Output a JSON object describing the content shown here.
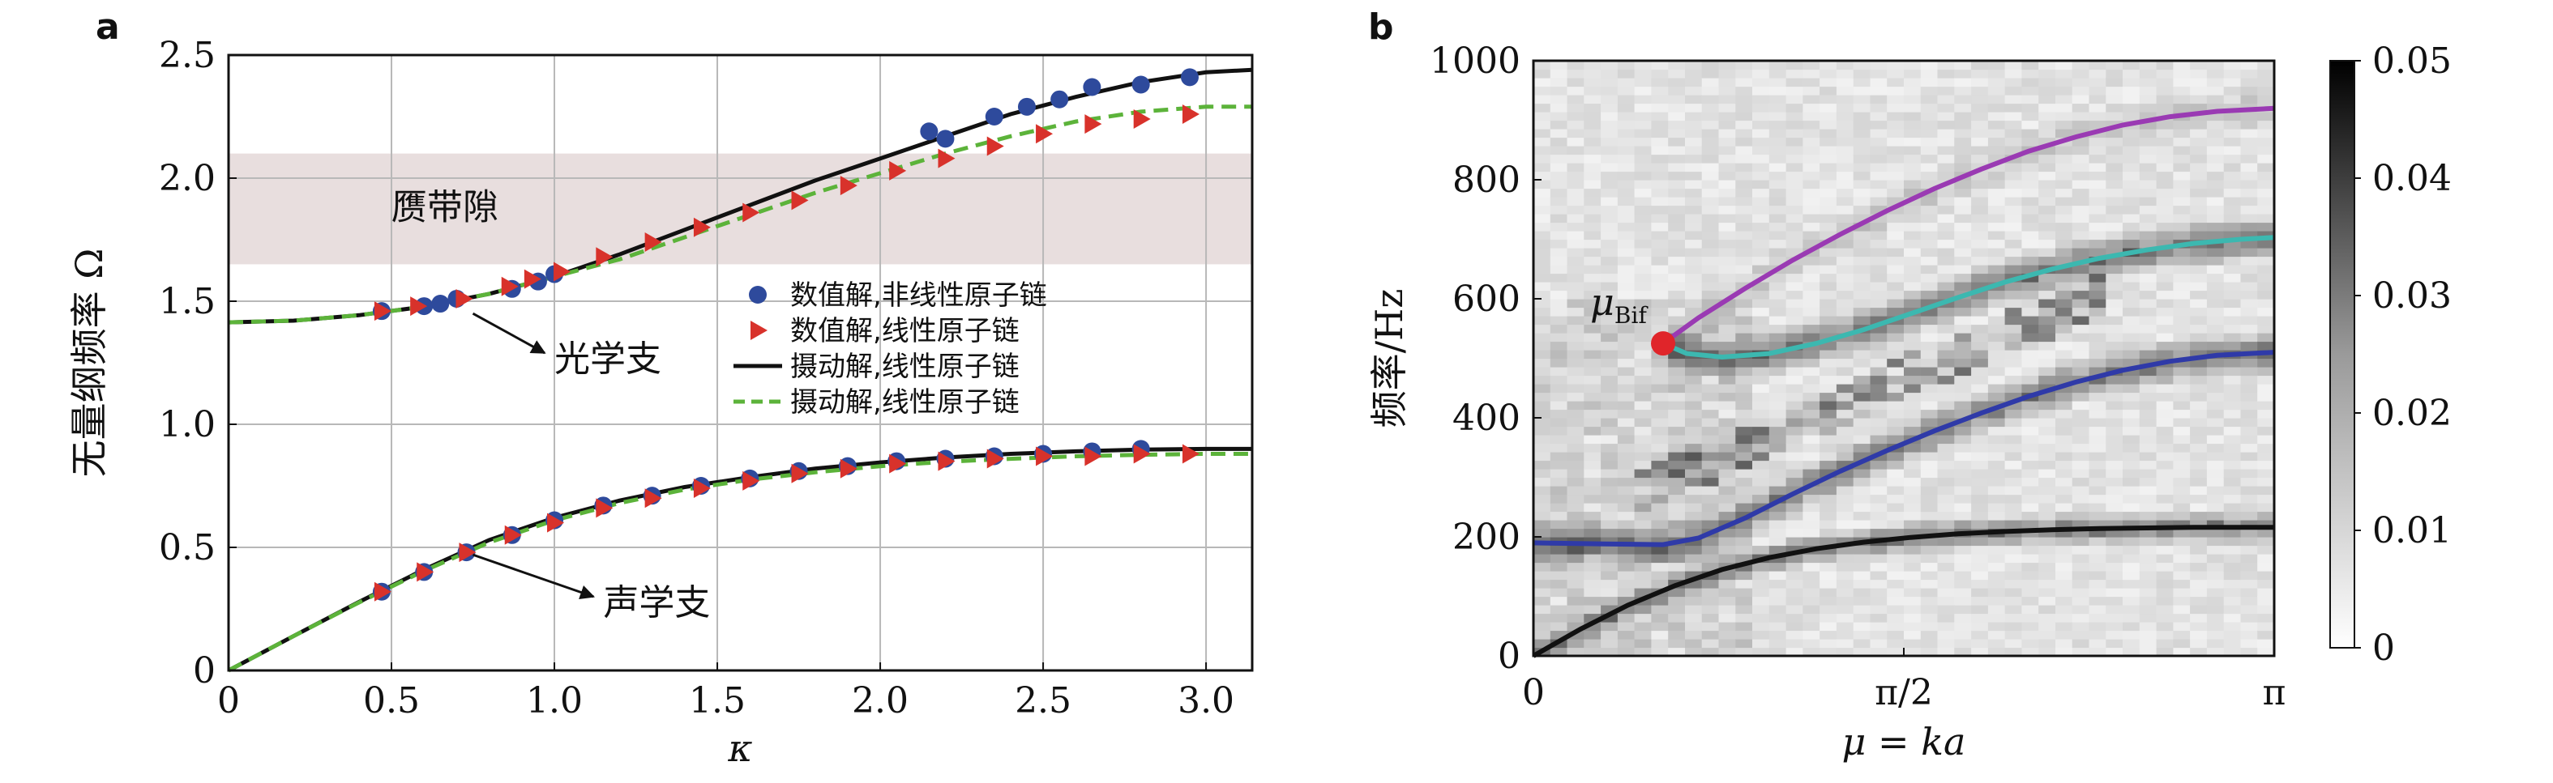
{
  "panels": {
    "a": "a",
    "b": "b"
  },
  "chart_data": [
    {
      "type": "line",
      "xlabel": "κ",
      "ylabel": "无量纲频率 Ω",
      "xlim": [
        0,
        3.14159
      ],
      "ylim": [
        0,
        2.5
      ],
      "xticks": [
        0,
        0.5,
        1.0,
        1.5,
        2.0,
        2.5,
        3.0
      ],
      "xtick_labels": [
        "0",
        "0.5",
        "1.0",
        "1.5",
        "2.0",
        "2.5",
        "3.0"
      ],
      "yticks": [
        0,
        0.5,
        1.0,
        1.5,
        2.0,
        2.5
      ],
      "ytick_labels": [
        "0",
        "0.5",
        "1.0",
        "1.5",
        "2.0",
        "2.5"
      ],
      "grid": true,
      "band_gap": {
        "label": "赝带隙",
        "y_range": [
          1.65,
          2.1
        ],
        "color": "#e8dede"
      },
      "annotations": [
        {
          "text": "光学支",
          "point": [
            0.75,
            1.45
          ],
          "text_at": [
            1.0,
            1.27
          ]
        },
        {
          "text": "声学支",
          "point": [
            0.75,
            0.47
          ],
          "text_at": [
            1.15,
            0.28
          ]
        }
      ],
      "legend_position": "right",
      "series": [
        {
          "name": "数值解,非线性原子链",
          "kind": "scatter",
          "marker": "circle",
          "color": "#2e4a9c",
          "x": [
            0.47,
            0.6,
            0.65,
            0.7,
            0.87,
            0.95,
            1.0
          ],
          "y": [
            1.46,
            1.48,
            1.49,
            1.51,
            1.55,
            1.58,
            1.61
          ]
        },
        {
          "name": "数值解,非线性原子链",
          "kind": "scatter",
          "marker": "circle",
          "color": "#2e4a9c",
          "x": [
            2.15,
            2.2,
            2.35,
            2.45,
            2.55,
            2.65,
            2.8,
            2.95
          ],
          "y": [
            2.19,
            2.16,
            2.25,
            2.29,
            2.32,
            2.37,
            2.38,
            2.41
          ]
        },
        {
          "name": "数值解,非线性原子链",
          "kind": "scatter",
          "marker": "circle",
          "color": "#2e4a9c",
          "x": [
            0.47,
            0.6,
            0.73,
            0.87,
            1.0,
            1.15,
            1.3,
            1.45,
            1.6,
            1.75,
            1.9,
            2.05,
            2.2,
            2.35,
            2.5,
            2.65,
            2.8
          ],
          "y": [
            0.32,
            0.4,
            0.48,
            0.55,
            0.61,
            0.67,
            0.71,
            0.75,
            0.78,
            0.81,
            0.83,
            0.85,
            0.86,
            0.87,
            0.88,
            0.89,
            0.9
          ]
        },
        {
          "name": "数值解,线性原子链",
          "kind": "scatter",
          "marker": "triangle",
          "color": "#d8322b",
          "x": [
            0.47,
            0.58,
            0.72,
            0.86,
            0.93,
            1.02,
            1.15,
            1.3,
            1.45,
            1.6,
            1.75,
            1.9,
            2.05,
            2.2,
            2.35,
            2.5,
            2.65,
            2.8,
            2.95
          ],
          "y": [
            1.46,
            1.48,
            1.51,
            1.56,
            1.59,
            1.62,
            1.68,
            1.74,
            1.8,
            1.86,
            1.91,
            1.97,
            2.03,
            2.08,
            2.13,
            2.18,
            2.22,
            2.24,
            2.26
          ]
        },
        {
          "name": "数值解,线性原子链",
          "kind": "scatter",
          "marker": "triangle",
          "color": "#d8322b",
          "x": [
            0.47,
            0.6,
            0.73,
            0.87,
            1.0,
            1.15,
            1.3,
            1.45,
            1.6,
            1.75,
            1.9,
            2.05,
            2.2,
            2.35,
            2.5,
            2.65,
            2.8,
            2.95
          ],
          "y": [
            0.32,
            0.4,
            0.48,
            0.55,
            0.6,
            0.66,
            0.7,
            0.74,
            0.77,
            0.8,
            0.82,
            0.84,
            0.85,
            0.86,
            0.87,
            0.87,
            0.88,
            0.88
          ]
        },
        {
          "name": "摄动解,线性原子链",
          "kind": "line",
          "style": "solid",
          "color": "#111111",
          "x": [
            0,
            0.2,
            0.4,
            0.6,
            0.8,
            1.0,
            1.2,
            1.4,
            1.6,
            1.8,
            2.0,
            2.2,
            2.4,
            2.6,
            2.8,
            3.0,
            3.14159
          ],
          "y": [
            1.414,
            1.421,
            1.443,
            1.478,
            1.53,
            1.6,
            1.69,
            1.79,
            1.89,
            1.99,
            2.08,
            2.17,
            2.26,
            2.33,
            2.39,
            2.43,
            2.44
          ]
        },
        {
          "name": "摄动解,线性原子链",
          "kind": "line",
          "style": "solid",
          "color": "#111111",
          "x": [
            0,
            0.2,
            0.4,
            0.6,
            0.8,
            1.0,
            1.2,
            1.4,
            1.6,
            1.8,
            2.0,
            2.2,
            2.4,
            2.6,
            2.8,
            3.0,
            3.14159
          ],
          "y": [
            0,
            0.14,
            0.278,
            0.41,
            0.53,
            0.62,
            0.69,
            0.745,
            0.785,
            0.82,
            0.845,
            0.865,
            0.88,
            0.89,
            0.897,
            0.9,
            0.9
          ]
        },
        {
          "name": "摄动解,线性原子链",
          "kind": "line",
          "style": "dashed",
          "color": "#5cb33a",
          "x": [
            0,
            0.2,
            0.4,
            0.6,
            0.8,
            1.0,
            1.2,
            1.4,
            1.6,
            1.8,
            2.0,
            2.2,
            2.4,
            2.6,
            2.8,
            3.0,
            3.14159
          ],
          "y": [
            1.414,
            1.421,
            1.443,
            1.478,
            1.53,
            1.6,
            1.67,
            1.76,
            1.85,
            1.94,
            2.02,
            2.1,
            2.17,
            2.23,
            2.27,
            2.29,
            2.29
          ]
        },
        {
          "name": "摄动解,线性原子链",
          "kind": "line",
          "style": "dashed",
          "color": "#5cb33a",
          "x": [
            0,
            0.2,
            0.4,
            0.6,
            0.8,
            1.0,
            1.2,
            1.4,
            1.6,
            1.8,
            2.0,
            2.2,
            2.4,
            2.6,
            2.8,
            3.0,
            3.14159
          ],
          "y": [
            0,
            0.14,
            0.276,
            0.405,
            0.52,
            0.61,
            0.68,
            0.735,
            0.775,
            0.805,
            0.83,
            0.848,
            0.86,
            0.87,
            0.876,
            0.88,
            0.88
          ]
        }
      ],
      "legend": [
        {
          "label": "数值解,非线性原子链",
          "marker": "circle",
          "color": "#2e4a9c"
        },
        {
          "label": "数值解,线性原子链",
          "marker": "triangle",
          "color": "#d8322b"
        },
        {
          "label": "摄动解,线性原子链",
          "marker": "solid",
          "color": "#111111"
        },
        {
          "label": "摄动解,线性原子链",
          "marker": "dashed",
          "color": "#5cb33a"
        }
      ]
    },
    {
      "type": "heatmap",
      "xlabel": "μ = ka",
      "ylabel": "频率/Hz",
      "xlim": [
        0,
        3.14159
      ],
      "ylim": [
        0,
        1000
      ],
      "xtick_labels": [
        "0",
        "π/2",
        "π"
      ],
      "xticks": [
        0,
        1.5708,
        3.14159
      ],
      "yticks": [
        0,
        200,
        400,
        600,
        800,
        1000
      ],
      "ytick_labels": [
        "0",
        "200",
        "400",
        "600",
        "800",
        "1000"
      ],
      "colorbar": {
        "min": 0,
        "max": 0.05,
        "ticks": [
          "0",
          "0.01",
          "0.02",
          "0.03",
          "0.04",
          "0.05"
        ]
      },
      "bifurcation": {
        "label_main": "μ",
        "label_sub": "Bif",
        "mu": 0.55,
        "freq": 525,
        "color": "#e0252a"
      },
      "series": [
        {
          "name": "",
          "color": "#111111",
          "x": [
            0,
            0.2,
            0.4,
            0.6,
            0.8,
            1.0,
            1.2,
            1.4,
            1.6,
            1.8,
            2.0,
            2.2,
            2.4,
            2.6,
            2.8,
            3.0,
            3.14159
          ],
          "y": [
            0,
            45,
            85,
            118,
            145,
            165,
            180,
            191,
            199,
            205,
            209,
            212,
            214,
            215,
            216,
            216,
            216
          ]
        },
        {
          "name": "",
          "color": "#2f3aa8",
          "x": [
            0,
            0.3,
            0.55,
            0.7,
            0.9,
            1.1,
            1.3,
            1.5,
            1.7,
            1.9,
            2.1,
            2.3,
            2.5,
            2.7,
            2.9,
            3.14159
          ],
          "y": [
            190,
            188,
            187,
            198,
            232,
            272,
            310,
            345,
            378,
            408,
            436,
            460,
            480,
            495,
            505,
            510
          ]
        },
        {
          "name": "",
          "color": "#3cb8b0",
          "x": [
            0.55,
            0.65,
            0.8,
            1.0,
            1.2,
            1.4,
            1.6,
            1.8,
            2.0,
            2.2,
            2.4,
            2.6,
            2.8,
            3.0,
            3.14159
          ],
          "y": [
            525,
            508,
            502,
            508,
            525,
            548,
            575,
            602,
            628,
            650,
            668,
            682,
            693,
            700,
            703
          ]
        },
        {
          "name": "",
          "color": "#9a3ab3",
          "x": [
            0.55,
            0.7,
            0.9,
            1.1,
            1.3,
            1.5,
            1.7,
            1.9,
            2.1,
            2.3,
            2.5,
            2.7,
            2.9,
            3.14159
          ],
          "y": [
            525,
            568,
            618,
            665,
            708,
            748,
            785,
            818,
            848,
            872,
            892,
            906,
            915,
            920
          ]
        }
      ]
    }
  ]
}
